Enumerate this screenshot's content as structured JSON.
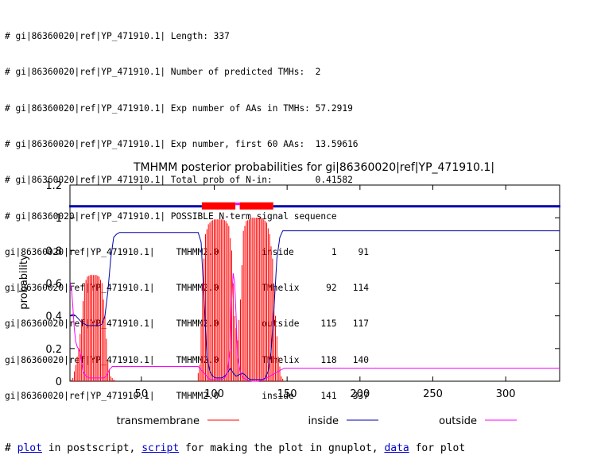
{
  "summary_lines": [
    "# gi|86360020|ref|YP_471910.1| Length: 337",
    "# gi|86360020|ref|YP_471910.1| Number of predicted TMHs:  2",
    "# gi|86360020|ref|YP_471910.1| Exp number of AAs in TMHs: 57.2919",
    "# gi|86360020|ref|YP_471910.1| Exp number, first 60 AAs:  13.59616",
    "# gi|86360020|ref|YP_471910.1| Total prob of N-in:        0.41582",
    "# gi|86360020|ref|YP_471910.1| POSSIBLE N-term signal sequence",
    "gi|86360020|ref|YP_471910.1|    TMHMM2.0        inside       1    91",
    "gi|86360020|ref|YP_471910.1|    TMHMM2.0        TMhelix     92   114",
    "gi|86360020|ref|YP_471910.1|    TMHMM2.0        outside    115   117",
    "gi|86360020|ref|YP_471910.1|    TMHMM2.0        TMhelix    118   140",
    "gi|86360020|ref|YP_471910.1|    TMHMM2.0        inside     141   337"
  ],
  "chart_data": {
    "type": "line",
    "title": "TMHMM posterior probabilities for gi|86360020|ref|YP_471910.1|",
    "xlabel": "",
    "ylabel": "probability",
    "xlim": [
      1,
      337
    ],
    "ylim": [
      0,
      1.2
    ],
    "x_ticks": [
      50,
      100,
      150,
      200,
      250,
      300
    ],
    "y_ticks": [
      0,
      0.2,
      0.4,
      0.6,
      0.8,
      1,
      1.2
    ],
    "grid": false,
    "legend_position": "bottom",
    "colors": {
      "transmembrane": "#ff0000",
      "inside": "#0000aa",
      "outside": "#ff00ff"
    },
    "series": [
      {
        "name": "transmembrane",
        "style": "impulses",
        "points": [
          [
            1,
            0
          ],
          [
            3,
            0.02
          ],
          [
            5,
            0.1
          ],
          [
            7,
            0.2
          ],
          [
            9,
            0.38
          ],
          [
            11,
            0.6
          ],
          [
            13,
            0.64
          ],
          [
            15,
            0.65
          ],
          [
            17,
            0.65
          ],
          [
            19,
            0.65
          ],
          [
            21,
            0.64
          ],
          [
            23,
            0.6
          ],
          [
            25,
            0.4
          ],
          [
            27,
            0.12
          ],
          [
            29,
            0.03
          ],
          [
            31,
            0.01
          ],
          [
            33,
            0
          ],
          [
            88,
            0
          ],
          [
            90,
            0.1
          ],
          [
            92,
            0.6
          ],
          [
            94,
            0.9
          ],
          [
            96,
            0.96
          ],
          [
            98,
            0.98
          ],
          [
            100,
            0.99
          ],
          [
            102,
            0.99
          ],
          [
            104,
            0.99
          ],
          [
            106,
            0.99
          ],
          [
            108,
            0.98
          ],
          [
            110,
            0.95
          ],
          [
            112,
            0.8
          ],
          [
            114,
            0.4
          ],
          [
            116,
            0.25
          ],
          [
            118,
            0.5
          ],
          [
            120,
            0.92
          ],
          [
            122,
            0.98
          ],
          [
            124,
            0.99
          ],
          [
            126,
            1
          ],
          [
            128,
            1
          ],
          [
            130,
            1
          ],
          [
            132,
            1
          ],
          [
            134,
            0.99
          ],
          [
            136,
            0.97
          ],
          [
            138,
            0.9
          ],
          [
            140,
            0.75
          ],
          [
            142,
            0.4
          ],
          [
            144,
            0.15
          ],
          [
            146,
            0.03
          ],
          [
            148,
            0
          ],
          [
            337,
            0
          ]
        ]
      },
      {
        "name": "inside",
        "style": "line",
        "points": [
          [
            1,
            0.4
          ],
          [
            3,
            0.41
          ],
          [
            5,
            0.4
          ],
          [
            7,
            0.38
          ],
          [
            9,
            0.36
          ],
          [
            11,
            0.35
          ],
          [
            13,
            0.34
          ],
          [
            15,
            0.34
          ],
          [
            17,
            0.34
          ],
          [
            19,
            0.34
          ],
          [
            21,
            0.34
          ],
          [
            23,
            0.35
          ],
          [
            25,
            0.4
          ],
          [
            27,
            0.55
          ],
          [
            29,
            0.75
          ],
          [
            31,
            0.88
          ],
          [
            33,
            0.9
          ],
          [
            35,
            0.91
          ],
          [
            89,
            0.91
          ],
          [
            91,
            0.85
          ],
          [
            93,
            0.5
          ],
          [
            95,
            0.15
          ],
          [
            97,
            0.06
          ],
          [
            99,
            0.03
          ],
          [
            101,
            0.02
          ],
          [
            103,
            0.02
          ],
          [
            105,
            0.02
          ],
          [
            107,
            0.03
          ],
          [
            109,
            0.05
          ],
          [
            111,
            0.08
          ],
          [
            113,
            0.05
          ],
          [
            115,
            0.03
          ],
          [
            117,
            0.04
          ],
          [
            119,
            0.05
          ],
          [
            121,
            0.04
          ],
          [
            123,
            0.02
          ],
          [
            125,
            0.01
          ],
          [
            127,
            0.01
          ],
          [
            129,
            0.01
          ],
          [
            131,
            0.01
          ],
          [
            133,
            0.01
          ],
          [
            135,
            0.02
          ],
          [
            137,
            0.06
          ],
          [
            139,
            0.18
          ],
          [
            141,
            0.45
          ],
          [
            143,
            0.75
          ],
          [
            145,
            0.88
          ],
          [
            147,
            0.92
          ],
          [
            337,
            0.92
          ]
        ]
      },
      {
        "name": "outside",
        "style": "line",
        "points": [
          [
            1,
            0.6
          ],
          [
            2,
            0.58
          ],
          [
            3,
            0.45
          ],
          [
            4,
            0.32
          ],
          [
            5,
            0.24
          ],
          [
            6,
            0.21
          ],
          [
            8,
            0.18
          ],
          [
            10,
            0.06
          ],
          [
            12,
            0.03
          ],
          [
            14,
            0.02
          ],
          [
            16,
            0.02
          ],
          [
            18,
            0.02
          ],
          [
            20,
            0.02
          ],
          [
            22,
            0.02
          ],
          [
            24,
            0.02
          ],
          [
            26,
            0.03
          ],
          [
            28,
            0.07
          ],
          [
            30,
            0.09
          ],
          [
            32,
            0.09
          ],
          [
            89,
            0.09
          ],
          [
            91,
            0.07
          ],
          [
            93,
            0.05
          ],
          [
            95,
            0.03
          ],
          [
            97,
            0.01
          ],
          [
            99,
            0.01
          ],
          [
            101,
            0.01
          ],
          [
            103,
            0.01
          ],
          [
            105,
            0.01
          ],
          [
            107,
            0.02
          ],
          [
            109,
            0.05
          ],
          [
            111,
            0.2
          ],
          [
            112,
            0.5
          ],
          [
            113,
            0.66
          ],
          [
            114,
            0.6
          ],
          [
            115,
            0.4
          ],
          [
            116,
            0.15
          ],
          [
            118,
            0.05
          ],
          [
            120,
            0.02
          ],
          [
            122,
            0.01
          ],
          [
            126,
            0
          ],
          [
            130,
            0
          ],
          [
            134,
            0.01
          ],
          [
            136,
            0.02
          ],
          [
            138,
            0.03
          ],
          [
            140,
            0.04
          ],
          [
            142,
            0.05
          ],
          [
            144,
            0.06
          ],
          [
            146,
            0.07
          ],
          [
            148,
            0.08
          ],
          [
            337,
            0.08
          ]
        ]
      }
    ],
    "topology_bar": {
      "y": 1.07,
      "segments": [
        {
          "label": "inside",
          "start": 1,
          "end": 91
        },
        {
          "label": "TMhelix",
          "start": 92,
          "end": 114
        },
        {
          "label": "outside",
          "start": 115,
          "end": 117
        },
        {
          "label": "TMhelix",
          "start": 118,
          "end": 140
        },
        {
          "label": "inside",
          "start": 141,
          "end": 337
        }
      ]
    }
  },
  "footer": {
    "prefix": "# ",
    "plot_link": "plot",
    "text1": " in postscript, ",
    "script_link": "script",
    "text2": " for making the plot in gnuplot, ",
    "data_link": "data",
    "text3": " for plot"
  }
}
